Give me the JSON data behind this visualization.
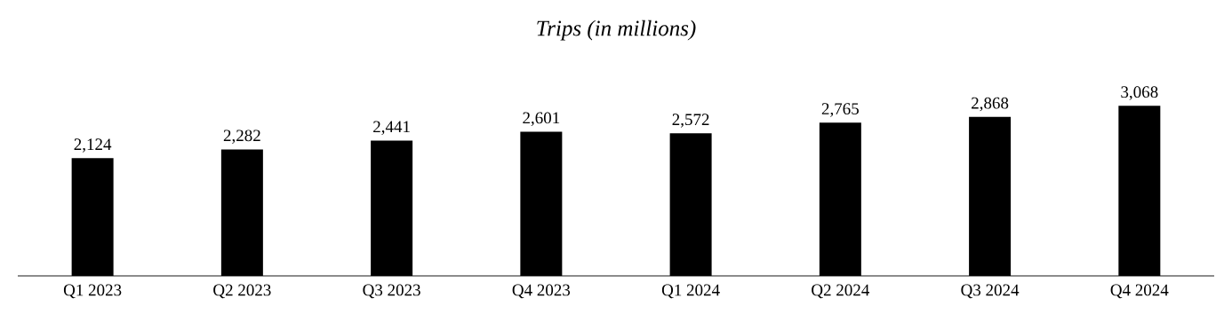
{
  "chart_data": {
    "type": "bar",
    "title": "*Trips (in millions)*",
    "categories": [
      "Q1 2023",
      "Q2 2023",
      "Q3 2023",
      "Q4 2023",
      "Q1 2024",
      "Q2 2024",
      "Q3 2024",
      "Q4 2024"
    ],
    "values": [
      2124,
      2282,
      2441,
      2601,
      2572,
      2765,
      2868,
      3068
    ],
    "value_labels": [
      "2,124",
      "2,282",
      "2,441",
      "2,601",
      "2,572",
      "2,765",
      "2,868",
      "3,068"
    ],
    "color": "#000000"
  }
}
